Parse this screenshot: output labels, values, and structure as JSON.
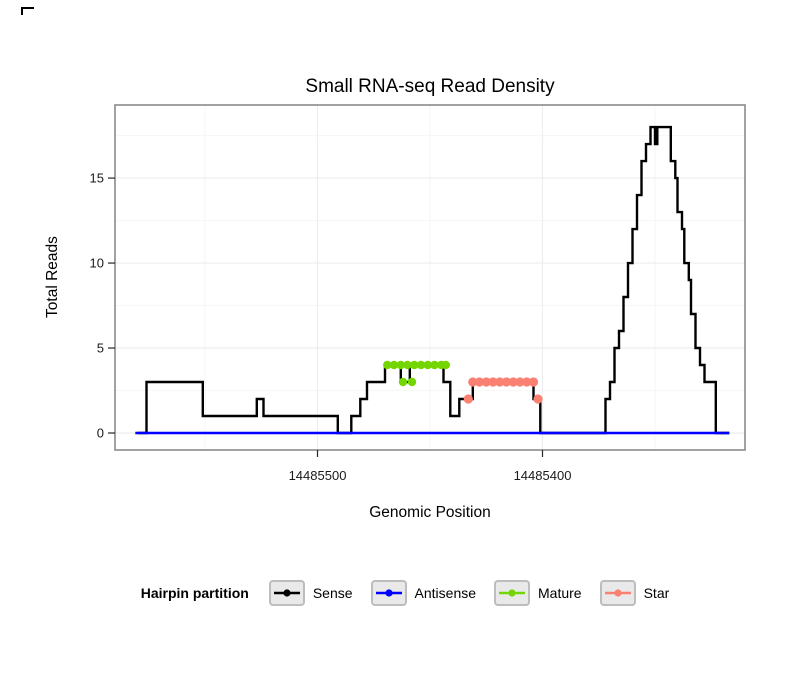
{
  "chart_data": {
    "type": "line",
    "title": "Small RNA-seq Read Density",
    "xlabel": "Genomic Position",
    "ylabel": "Total Reads",
    "x_axis": {
      "reversed": true,
      "lim": [
        14485590,
        14485310
      ],
      "ticks": [
        {
          "value": 14485500,
          "label": "14485500"
        },
        {
          "value": 14485400,
          "label": "14485400"
        }
      ]
    },
    "y_axis": {
      "lim": [
        -1,
        19.3
      ],
      "ticks": [
        {
          "value": 0,
          "label": "0"
        },
        {
          "value": 5,
          "label": "5"
        },
        {
          "value": 10,
          "label": "10"
        },
        {
          "value": 15,
          "label": "15"
        }
      ]
    },
    "grid": {
      "major": true,
      "minor": true
    },
    "legend_position": "bottom",
    "series": [
      {
        "name": "Sense",
        "color": "#000000",
        "line_width": 2.4,
        "points": [
          [
            14485580,
            0
          ],
          [
            14485576,
            0
          ],
          [
            14485576,
            3
          ],
          [
            14485551,
            3
          ],
          [
            14485551,
            1
          ],
          [
            14485527,
            1
          ],
          [
            14485527,
            2
          ],
          [
            14485524,
            2
          ],
          [
            14485524,
            1
          ],
          [
            14485491,
            1
          ],
          [
            14485491,
            0
          ],
          [
            14485485,
            0
          ],
          [
            14485485,
            1
          ],
          [
            14485481,
            1
          ],
          [
            14485481,
            2
          ],
          [
            14485478,
            2
          ],
          [
            14485478,
            3
          ],
          [
            14485470,
            3
          ],
          [
            14485470,
            4
          ],
          [
            14485463,
            4
          ],
          [
            14485463,
            3
          ],
          [
            14485459,
            3
          ],
          [
            14485459,
            4
          ],
          [
            14485444,
            4
          ],
          [
            14485444,
            3
          ],
          [
            14485441,
            3
          ],
          [
            14485441,
            1
          ],
          [
            14485437,
            1
          ],
          [
            14485437,
            2
          ],
          [
            14485431,
            2
          ],
          [
            14485431,
            3
          ],
          [
            14485404,
            3
          ],
          [
            14485404,
            2
          ],
          [
            14485401,
            2
          ],
          [
            14485401,
            0
          ],
          [
            14485372,
            0
          ],
          [
            14485372,
            2
          ],
          [
            14485370,
            2
          ],
          [
            14485370,
            3
          ],
          [
            14485368,
            3
          ],
          [
            14485368,
            5
          ],
          [
            14485366,
            5
          ],
          [
            14485366,
            6
          ],
          [
            14485364,
            6
          ],
          [
            14485364,
            8
          ],
          [
            14485362,
            8
          ],
          [
            14485362,
            10
          ],
          [
            14485360,
            10
          ],
          [
            14485360,
            12
          ],
          [
            14485358,
            12
          ],
          [
            14485358,
            14
          ],
          [
            14485356,
            14
          ],
          [
            14485356,
            16
          ],
          [
            14485354,
            16
          ],
          [
            14485354,
            17
          ],
          [
            14485352,
            17
          ],
          [
            14485352,
            18
          ],
          [
            14485350,
            18
          ],
          [
            14485350,
            17
          ],
          [
            14485349,
            17
          ],
          [
            14485349,
            18
          ],
          [
            14485343,
            18
          ],
          [
            14485343,
            16
          ],
          [
            14485341,
            16
          ],
          [
            14485341,
            15
          ],
          [
            14485340,
            15
          ],
          [
            14485340,
            13
          ],
          [
            14485338,
            13
          ],
          [
            14485338,
            12
          ],
          [
            14485337,
            12
          ],
          [
            14485337,
            10
          ],
          [
            14485335,
            10
          ],
          [
            14485335,
            9
          ],
          [
            14485334,
            9
          ],
          [
            14485334,
            7
          ],
          [
            14485332,
            7
          ],
          [
            14485332,
            5
          ],
          [
            14485330,
            5
          ],
          [
            14485330,
            4
          ],
          [
            14485328,
            4
          ],
          [
            14485328,
            3
          ],
          [
            14485323,
            3
          ],
          [
            14485323,
            0
          ],
          [
            14485317,
            0
          ]
        ]
      },
      {
        "name": "Antisense",
        "color": "#0000FF",
        "line_width": 2.6,
        "points": [
          [
            14485581,
            0
          ],
          [
            14485317,
            0
          ]
        ]
      },
      {
        "name": "Mature",
        "color": "#74D600",
        "line_width": 5,
        "marker_radius": 4.2,
        "points": [
          [
            14485469,
            4
          ],
          [
            14485443,
            4
          ]
        ],
        "markers": [
          [
            14485469,
            4
          ],
          [
            14485466,
            4
          ],
          [
            14485463,
            4
          ],
          [
            14485460,
            4
          ],
          [
            14485457,
            4
          ],
          [
            14485454,
            4
          ],
          [
            14485451,
            4
          ],
          [
            14485448,
            4
          ],
          [
            14485445,
            4
          ],
          [
            14485443,
            4
          ],
          [
            14485462,
            3
          ],
          [
            14485458,
            3
          ]
        ]
      },
      {
        "name": "Star",
        "color": "#FA8072",
        "line_width": 6,
        "marker_radius": 4.6,
        "points": [
          [
            14485431,
            3
          ],
          [
            14485404,
            3
          ]
        ],
        "markers": [
          [
            14485433,
            2
          ],
          [
            14485431,
            3
          ],
          [
            14485428,
            3
          ],
          [
            14485425,
            3
          ],
          [
            14485422,
            3
          ],
          [
            14485419,
            3
          ],
          [
            14485416,
            3
          ],
          [
            14485413,
            3
          ],
          [
            14485410,
            3
          ],
          [
            14485407,
            3
          ],
          [
            14485404,
            3
          ],
          [
            14485402,
            2
          ]
        ]
      }
    ]
  },
  "legend": {
    "title": "Hairpin partition",
    "items": [
      {
        "label": "Sense",
        "color": "#000000"
      },
      {
        "label": "Antisense",
        "color": "#0000FF"
      },
      {
        "label": "Mature",
        "color": "#74D600"
      },
      {
        "label": "Star",
        "color": "#FA8072"
      }
    ]
  }
}
